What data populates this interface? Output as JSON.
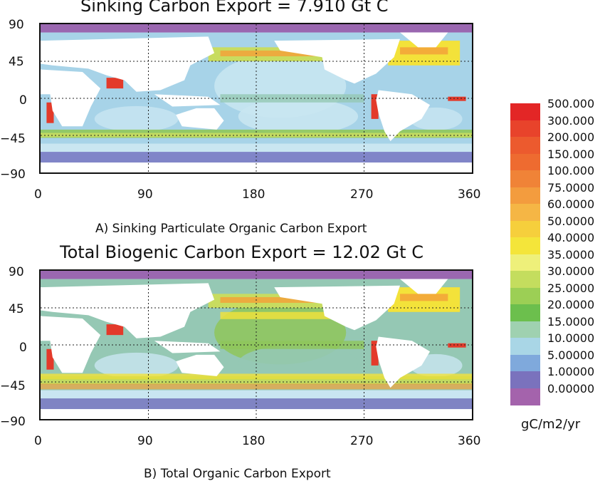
{
  "colors": {
    "deep_ocean": "#a7d3e8",
    "pale_blue": "#c9e6f1",
    "teal": "#95c8b4",
    "green": "#8fc65a",
    "yellow_green": "#c8dc60",
    "yellow": "#f3e23a",
    "orange": "#f2a23a",
    "red": "#e33a2a",
    "purple": "#9a67b0",
    "blue_violet": "#7c7cc4",
    "land": "#ffffff"
  },
  "panels": [
    {
      "title": "Sinking Carbon Export = 7.910 Gt C",
      "caption": "A) Sinking Particulate Organic Carbon Export"
    },
    {
      "title": "Total Biogenic Carbon Export = 12.02 Gt C",
      "caption": "B) Total Organic Carbon Export"
    }
  ],
  "map_data": {
    "type": "global-grid",
    "x_ticks": [
      "0",
      "90",
      "180",
      "270",
      "360"
    ],
    "y_ticks": [
      "90",
      "45",
      "0",
      "−45",
      "−90"
    ],
    "xlim": [
      0,
      360
    ],
    "ylim": [
      -90,
      90
    ],
    "grid": true
  },
  "legend": {
    "units": "gC/m2/yr",
    "entries": [
      {
        "label": "500.000",
        "color": "#e32626"
      },
      {
        "label": "300.000",
        "color": "#e8432b"
      },
      {
        "label": "200.000",
        "color": "#ec5a2e"
      },
      {
        "label": "150.000",
        "color": "#ee6b30"
      },
      {
        "label": "100.000",
        "color": "#f08337"
      },
      {
        "label": "75.0000",
        "color": "#f39c3e"
      },
      {
        "label": "60.0000",
        "color": "#f5b645"
      },
      {
        "label": "50.0000",
        "color": "#f6cf3c"
      },
      {
        "label": "40.0000",
        "color": "#f4e53a"
      },
      {
        "label": "35.0000",
        "color": "#eef07a"
      },
      {
        "label": "30.0000",
        "color": "#c4dd5e"
      },
      {
        "label": "25.0000",
        "color": "#9ccf55"
      },
      {
        "label": "20.0000",
        "color": "#6cbf4d"
      },
      {
        "label": "15.0000",
        "color": "#9fd1b0"
      },
      {
        "label": "10.0000",
        "color": "#a9d6e6"
      },
      {
        "label": "5.00000",
        "color": "#7fa9dc"
      },
      {
        "label": "1.00000",
        "color": "#7a72bd"
      },
      {
        "label": "0.00000",
        "color": "#a463ac"
      }
    ]
  }
}
